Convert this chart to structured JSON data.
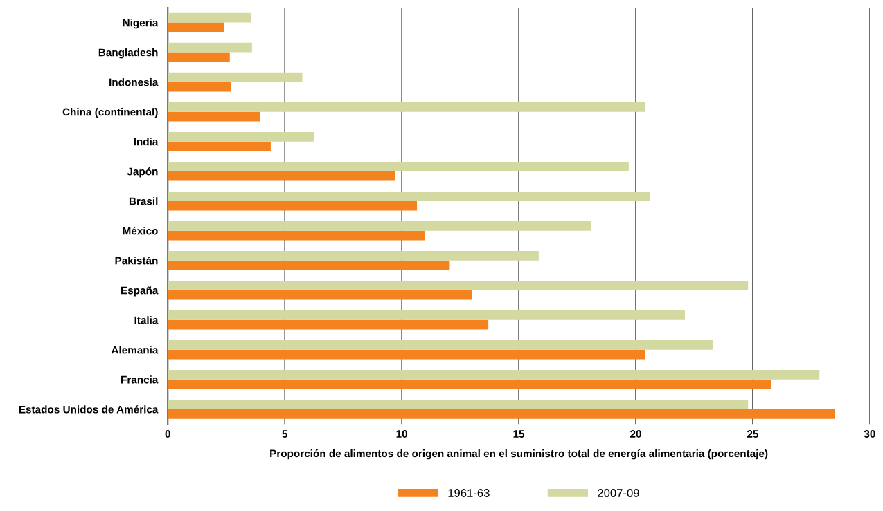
{
  "chart_data": {
    "type": "bar",
    "orientation": "horizontal",
    "xlabel": "Proporción de alimentos de origen animal en el suministro total de energía alimentaria (porcentaje)",
    "categories": [
      "Nigeria",
      "Bangladesh",
      "Indonesia",
      "China (continental)",
      "India",
      "Japón",
      "Brasil",
      "México",
      "Pakistán",
      "España",
      "Italia",
      "Alemania",
      "Francia",
      "Estados Unidos de América"
    ],
    "series": [
      {
        "name": "1961-63",
        "color": "#f4821f",
        "values": [
          2.4,
          2.65,
          2.7,
          3.95,
          4.4,
          9.7,
          10.65,
          11.0,
          12.05,
          13.0,
          13.7,
          20.4,
          25.8,
          28.5
        ]
      },
      {
        "name": "2007-09",
        "color": "#d3d9a0",
        "values": [
          3.55,
          3.6,
          5.75,
          20.4,
          6.25,
          19.7,
          20.6,
          18.1,
          15.85,
          24.8,
          22.1,
          23.3,
          27.85,
          24.8
        ]
      }
    ],
    "xlim": [
      0,
      30
    ],
    "xticks": [
      0,
      5,
      10,
      15,
      20,
      25,
      30
    ],
    "grid": "x",
    "legend": "bottom"
  }
}
